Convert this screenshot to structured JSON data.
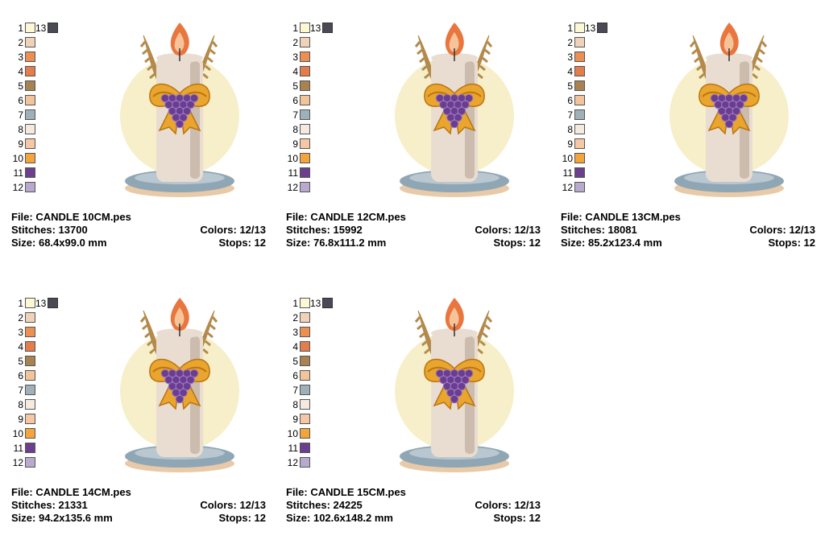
{
  "palette": {
    "numbers": [
      "1",
      "2",
      "3",
      "4",
      "5",
      "6",
      "7",
      "8",
      "9",
      "10",
      "11",
      "12"
    ],
    "colors": [
      "#fbf8d3",
      "#f0d2b8",
      "#ec8f52",
      "#e37d4c",
      "#a88250",
      "#f3c39a",
      "#9fb0b8",
      "#f5eadf",
      "#f5c7a5",
      "#f3a43a",
      "#6b3f8e",
      "#b9aacd"
    ],
    "extra_number": "13",
    "extra_color": "#4a4a55"
  },
  "labels": {
    "file": "File:",
    "stitches": "Stitches:",
    "size": "Size:",
    "colors": "Colors:",
    "stops": "Stops:"
  },
  "cards": [
    {
      "file": "CANDLE 10CM.pes",
      "stitches": "13700",
      "size": "68.4x99.0 mm",
      "colors": "12/13",
      "stops": "12"
    },
    {
      "file": "CANDLE 12CM.pes",
      "stitches": "15992",
      "size": "76.8x111.2 mm",
      "colors": "12/13",
      "stops": "12"
    },
    {
      "file": "CANDLE 13CM.pes",
      "stitches": "18081",
      "size": "85.2x123.4 mm",
      "colors": "12/13",
      "stops": "12"
    },
    {
      "file": "CANDLE 14CM.pes",
      "stitches": "21331",
      "size": "94.2x135.6 mm",
      "colors": "12/13",
      "stops": "12"
    },
    {
      "file": "CANDLE 15CM.pes",
      "stitches": "24225",
      "size": "102.6x148.2 mm",
      "colors": "12/13",
      "stops": "12"
    }
  ],
  "artwork": {
    "icon": "candle-embroidery-icon",
    "colors": {
      "halo": "#f6efc9",
      "candle": "#e9ddd1",
      "candle_shade": "#cbbcae",
      "plate": "#8fa6b4",
      "plate_light": "#b8c7d0",
      "plate_rim": "#e8c9a8",
      "flame_outer": "#e8763e",
      "flame_inner": "#f7c49a",
      "wheat": "#b48a4c",
      "bow": "#e9a52d",
      "bow_dark": "#b97512",
      "grapes": "#6a3d90",
      "grape_light": "#9a78c0"
    }
  }
}
